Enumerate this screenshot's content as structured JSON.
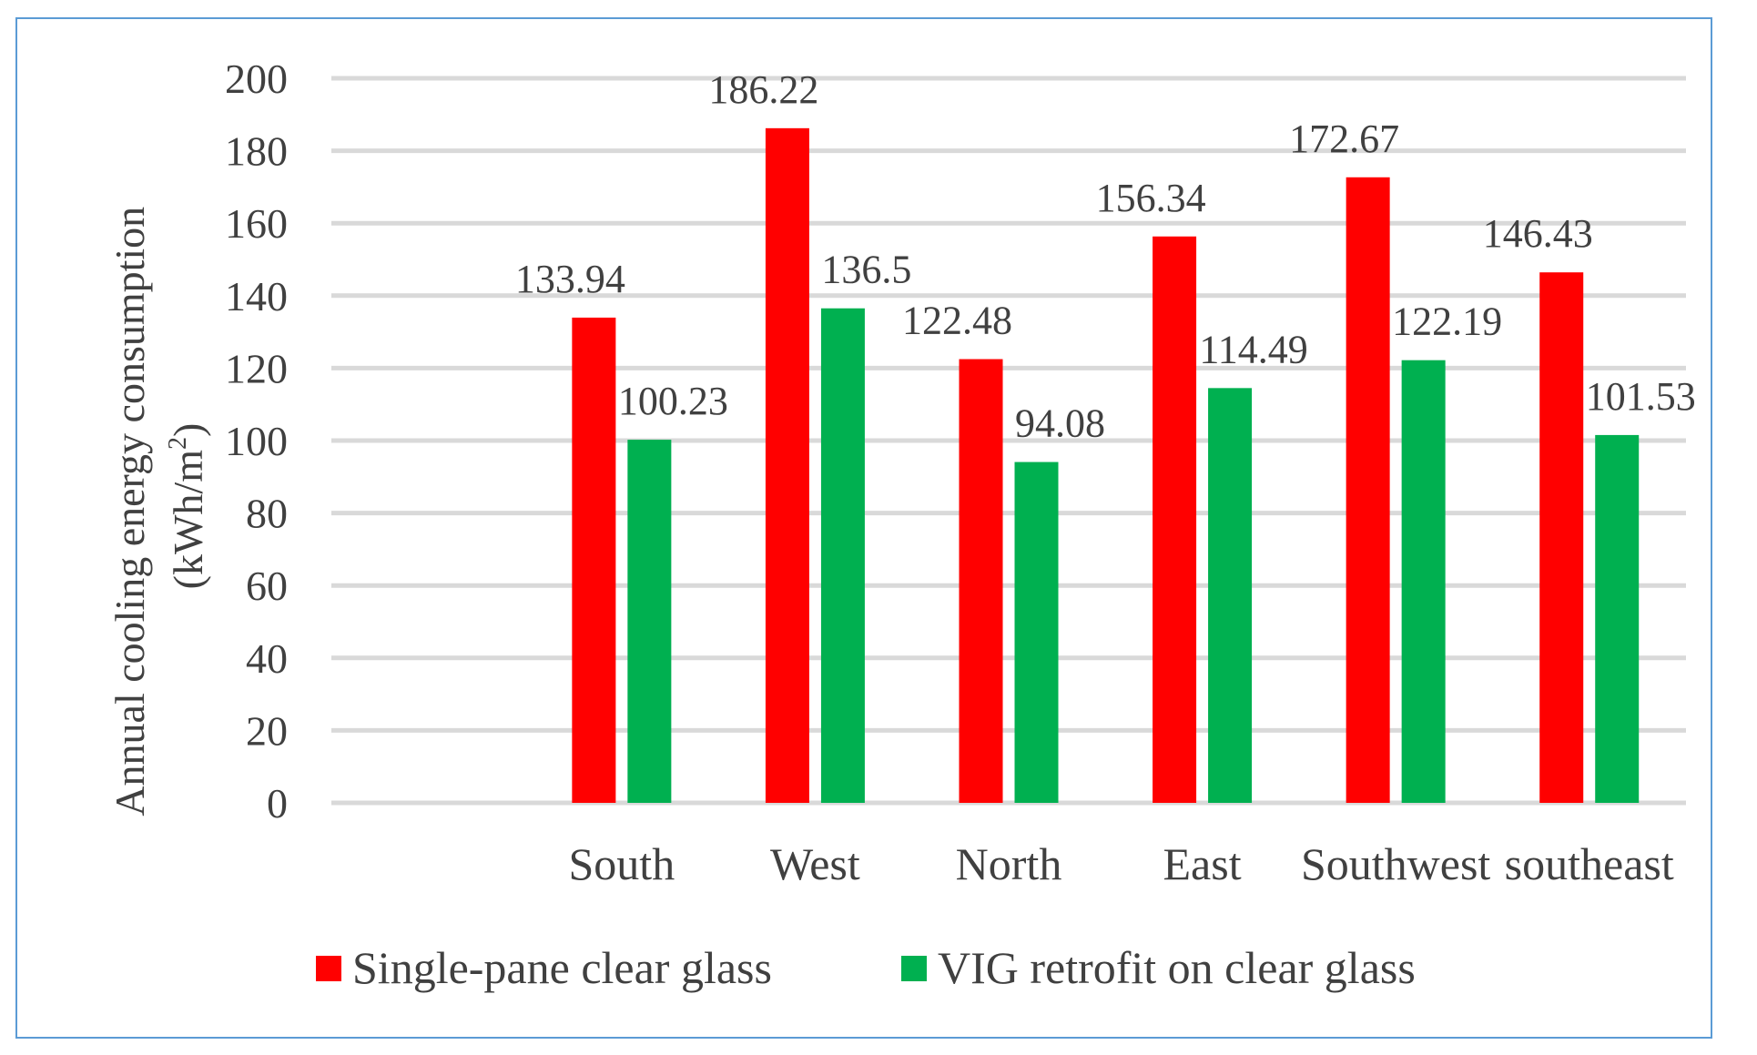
{
  "chart_data": {
    "type": "bar",
    "title": "",
    "xlabel": "",
    "ylabel": "Annual cooling energy consumption",
    "ylabel_unit_prefix": "(kWh/m",
    "ylabel_unit_sup": "2",
    "ylabel_unit_suffix": ")",
    "ylim": [
      0,
      200
    ],
    "yticks": [
      0,
      20,
      40,
      60,
      80,
      100,
      120,
      140,
      160,
      180,
      200
    ],
    "categories": [
      "",
      "South",
      "West",
      "North",
      "East",
      "Southwest",
      "southeast"
    ],
    "series": [
      {
        "name": "Single-pane clear glass",
        "color": "#ff0000",
        "values": [
          null,
          133.94,
          186.22,
          122.48,
          156.34,
          172.67,
          146.43
        ]
      },
      {
        "name": "VIG retrofit on clear glass",
        "color": "#00b050",
        "values": [
          null,
          100.23,
          136.5,
          94.08,
          114.49,
          122.19,
          101.53
        ]
      }
    ],
    "data_labels": true,
    "grid": "horizontal",
    "legend_position": "bottom"
  }
}
